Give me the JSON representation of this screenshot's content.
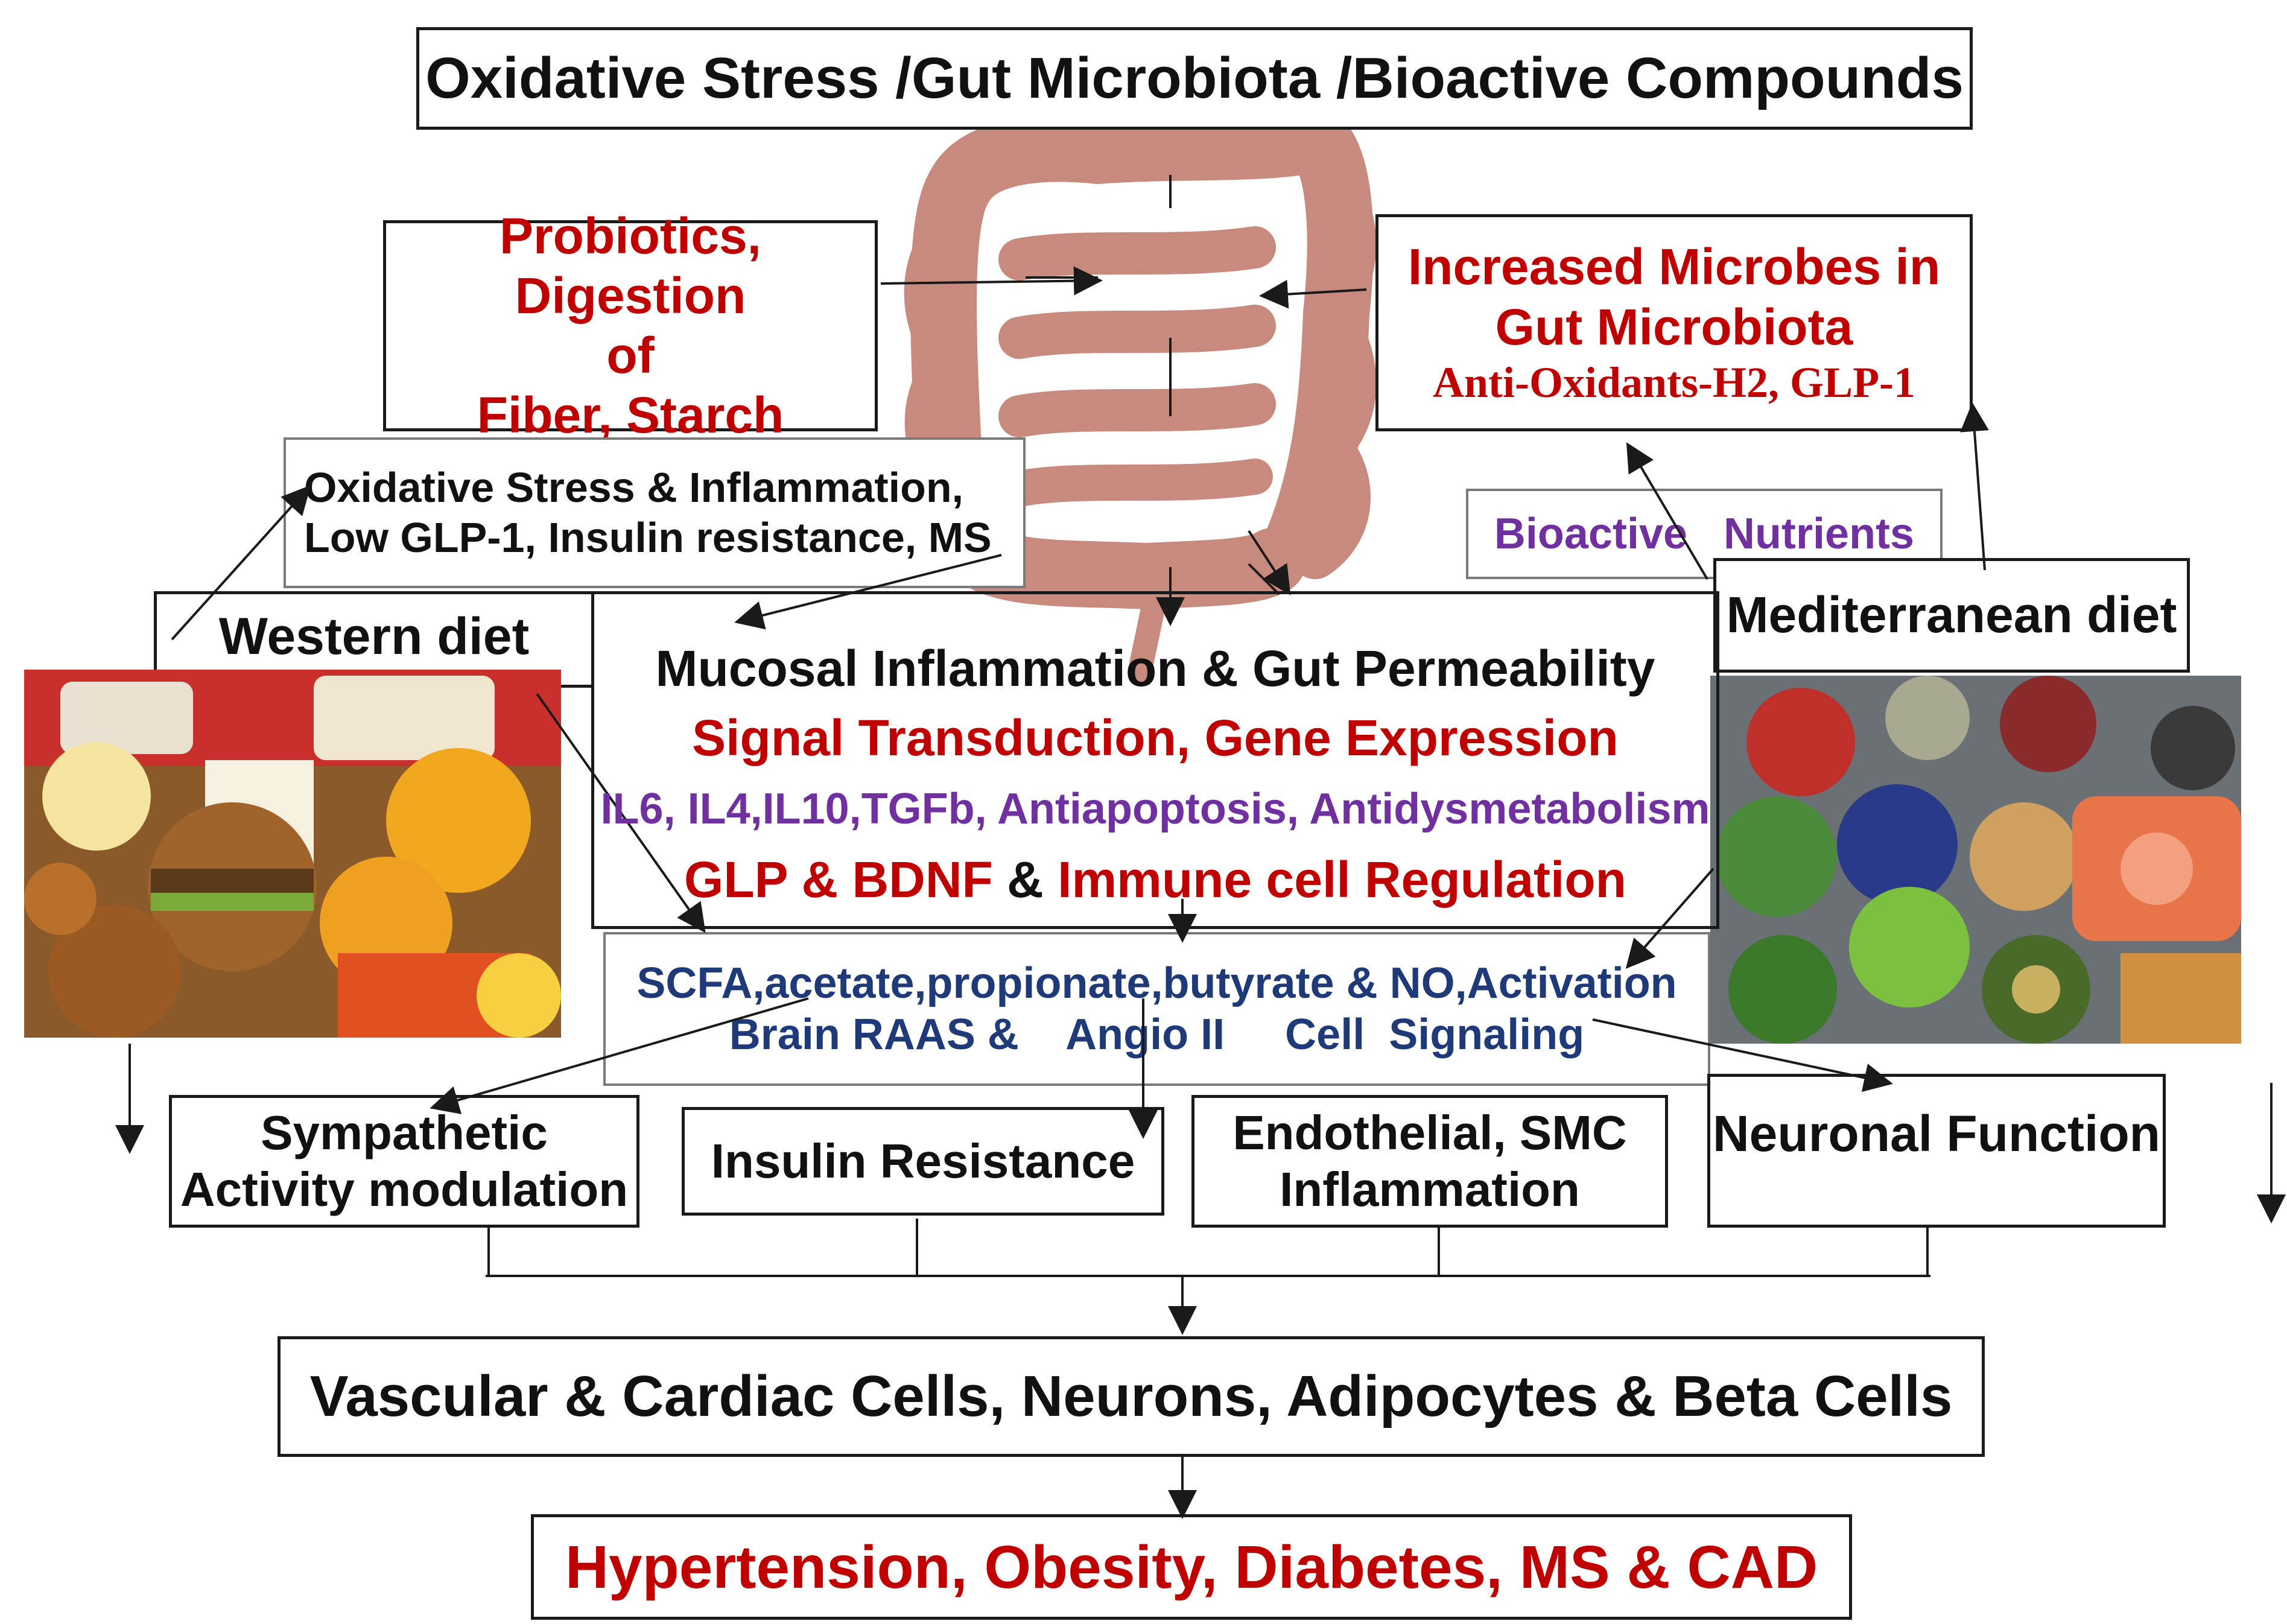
{
  "title": "Oxidative Stress /Gut Microbiota /Bioactive Compounds",
  "probiotics": {
    "line1": "Probiotics, Digestion",
    "line2": "of",
    "line3": "Fiber, Starch"
  },
  "increased_microbes": {
    "line1": "Increased Microbes in",
    "line2": "Gut Microbiota",
    "line3": "Anti-Oxidants-H2, GLP-1"
  },
  "oxidative_box": {
    "line1": "Oxidative Stress & Inflammation,",
    "line2": "Low GLP-1, Insulin resistance, MS"
  },
  "bioactive_nutrients": "Bioactive   Nutrients",
  "western_diet": "Western diet",
  "mediterranean_diet": "Mediterranean diet",
  "center": {
    "line1": "Mucosal Inflammation & Gut Permeability",
    "line2": "Signal Transduction, Gene Expression",
    "line3": "IL6, IL4,IL10,TGFb, Antiapoptosis, Antidysmetabolism",
    "line4a": "GLP & BDNF",
    "line4b": " & ",
    "line4c": "Immune cell Regulation"
  },
  "scfa": {
    "line1": "SCFA,acetate,propionate,butyrate & NO,Activation",
    "line2": "Brain RAAS &    Angio II     Cell  Signaling"
  },
  "effects": {
    "sympathetic": {
      "line1": "Sympathetic",
      "line2": "Activity modulation"
    },
    "insulin": "Insulin Resistance",
    "endothelial": {
      "line1": "Endothelial, SMC",
      "line2": "Inflammation"
    },
    "neuronal": "Neuronal Function"
  },
  "cells": "Vascular & Cardiac Cells, Neurons, Adipocytes & Beta Cells",
  "outcome": "Hypertension, Obesity, Diabetes, MS & CAD",
  "colors": {
    "red": "#c00000",
    "purple": "#7030a0",
    "navy": "#1f3a78",
    "gut": "#c98a7e"
  }
}
